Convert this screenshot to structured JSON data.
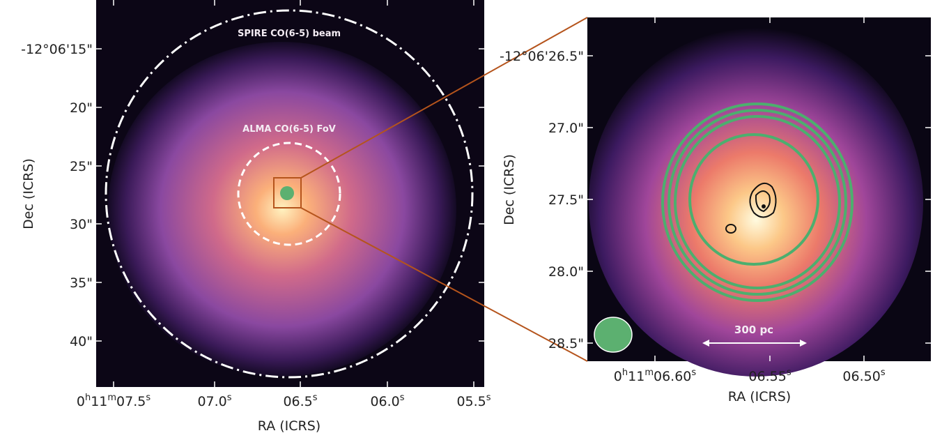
{
  "left_panel": {
    "annotations": [
      "SPIRE CO(6-5) beam",
      "ALMA CO(6-5) FoV"
    ],
    "x_label": "RA (ICRS)",
    "y_label": "Dec (ICRS)",
    "y_ticks": [
      "-12°06'15\"",
      "20\"",
      "25\"",
      "30\"",
      "35\"",
      "40\""
    ],
    "x_ticks": [
      [
        "0",
        "h",
        "11",
        "m",
        "07.5",
        "s"
      ],
      [
        "07.0",
        "s"
      ],
      [
        "06.5",
        "s"
      ],
      [
        "06.0",
        "s"
      ],
      [
        "05.5",
        "s"
      ]
    ]
  },
  "right_panel": {
    "scale_bar": "300 pc",
    "x_label": "RA (ICRS)",
    "y_label": "Dec (ICRS)",
    "y_ticks": [
      "-12°06'26.5\"",
      "27.0\"",
      "27.5\"",
      "28.0\"",
      "28.5\""
    ],
    "x_ticks": [
      [
        "0",
        "h",
        "11",
        "m",
        "06.60",
        "s"
      ],
      [
        "06.55",
        "s"
      ],
      [
        "06.50",
        "s"
      ]
    ]
  }
}
